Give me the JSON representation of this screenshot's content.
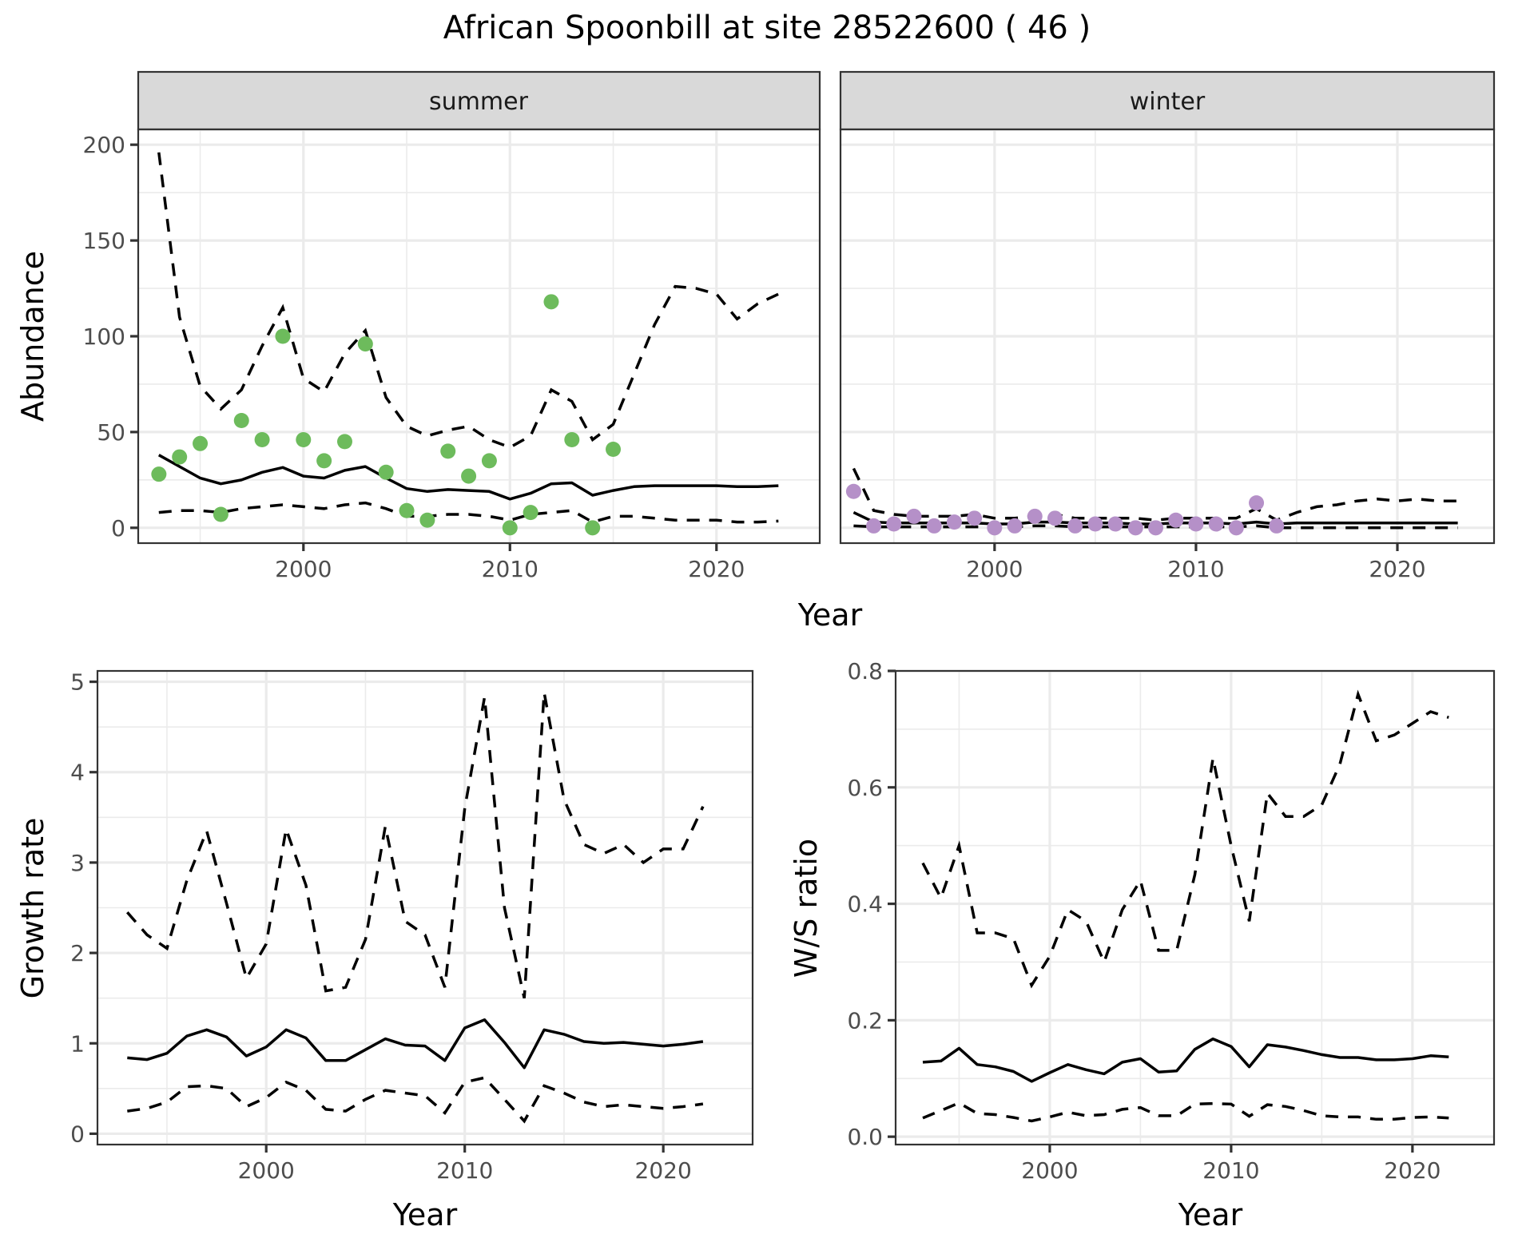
{
  "figure": {
    "title": "African Spoonbill at site 28522600 ( 46 )"
  },
  "colors": {
    "summer_points": "#6dbb5c",
    "winter_points": "#b590c8",
    "lines": "#000000"
  },
  "chart_data": [
    {
      "id": "abundance",
      "type": "scatter",
      "facets": [
        "summer",
        "winter"
      ],
      "title": "",
      "xlabel": "Year",
      "ylabel": "Abundance",
      "xlim": [
        1992,
        2025
      ],
      "ylim": [
        -8,
        208
      ],
      "x_ticks": [
        2000,
        2010,
        2020
      ],
      "y_ticks": [
        0,
        50,
        100,
        150,
        200
      ],
      "grid": true,
      "legend": "none",
      "panels": [
        {
          "label": "summer",
          "points": {
            "x": [
              1993,
              1994,
              1995,
              1996,
              1997,
              1998,
              1999,
              2000,
              2001,
              2002,
              2003,
              2004,
              2005,
              2006,
              2007,
              2008,
              2009,
              2010,
              2011,
              2012,
              2013,
              2014,
              2015
            ],
            "y": [
              28,
              37,
              44,
              7,
              56,
              46,
              100,
              46,
              35,
              45,
              96,
              29,
              9,
              4,
              40,
              27,
              35,
              0,
              8,
              118,
              46,
              0,
              41
            ]
          },
          "series": [
            {
              "name": "mean",
              "style": "solid",
              "x": [
                1993,
                1994,
                1995,
                1996,
                1997,
                1998,
                1999,
                2000,
                2001,
                2002,
                2003,
                2004,
                2005,
                2006,
                2007,
                2008,
                2009,
                2010,
                2011,
                2012,
                2013,
                2014,
                2015,
                2016,
                2017,
                2018,
                2019,
                2020,
                2021,
                2022,
                2023
              ],
              "y": [
                38,
                32,
                26,
                23,
                25,
                29,
                31.5,
                27,
                26,
                30,
                32,
                26,
                20.5,
                19,
                20,
                19.5,
                19,
                15,
                18,
                23,
                23.5,
                17,
                19.5,
                21.5,
                22,
                22,
                22,
                22,
                21.5,
                21.5,
                22
              ]
            },
            {
              "name": "upper",
              "style": "dashed",
              "x": [
                1993,
                1994,
                1995,
                1996,
                1997,
                1998,
                1999,
                2000,
                2001,
                2002,
                2003,
                2004,
                2005,
                2006,
                2007,
                2008,
                2009,
                2010,
                2011,
                2012,
                2013,
                2014,
                2015,
                2016,
                2017,
                2018,
                2019,
                2020,
                2021,
                2022,
                2023
              ],
              "y": [
                196,
                110,
                74,
                62,
                72,
                95,
                115,
                78,
                71,
                91,
                103,
                68,
                53,
                48,
                51,
                53,
                46,
                42,
                48,
                72,
                66,
                46,
                54,
                80,
                106,
                126,
                125,
                122,
                109,
                117,
                122
              ]
            },
            {
              "name": "lower",
              "style": "dashed",
              "x": [
                1993,
                1994,
                1995,
                1996,
                1997,
                1998,
                1999,
                2000,
                2001,
                2002,
                2003,
                2004,
                2005,
                2006,
                2007,
                2008,
                2009,
                2010,
                2011,
                2012,
                2013,
                2014,
                2015,
                2016,
                2017,
                2018,
                2019,
                2020,
                2021,
                2022,
                2023
              ],
              "y": [
                8,
                9,
                9,
                8,
                10,
                11,
                12,
                11,
                10,
                12,
                13,
                10,
                6,
                6,
                7,
                7,
                6,
                4,
                7,
                8,
                9,
                3,
                6,
                6,
                5,
                4,
                4,
                4,
                3,
                3,
                3.5
              ]
            }
          ]
        },
        {
          "label": "winter",
          "points": {
            "x": [
              1993,
              1994,
              1995,
              1996,
              1997,
              1998,
              1999,
              2000,
              2001,
              2002,
              2003,
              2004,
              2005,
              2006,
              2007,
              2008,
              2009,
              2010,
              2011,
              2012,
              2013,
              2014
            ],
            "y": [
              19,
              1,
              2,
              6,
              1,
              3,
              5,
              0,
              1,
              6,
              5,
              1,
              2,
              2,
              0,
              0,
              4,
              2,
              2,
              0,
              13,
              1
            ]
          },
          "series": [
            {
              "name": "mean",
              "style": "solid",
              "x": [
                1993,
                1994,
                1995,
                1996,
                1997,
                1998,
                1999,
                2000,
                2001,
                2002,
                2003,
                2004,
                2005,
                2006,
                2007,
                2008,
                2009,
                2010,
                2011,
                2012,
                2013,
                2014,
                2015,
                2016,
                2017,
                2018,
                2019,
                2020,
                2021,
                2022,
                2023
              ],
              "y": [
                8,
                3,
                2.5,
                2.5,
                2.5,
                2.5,
                2.5,
                2,
                2,
                3,
                3,
                2.5,
                2.5,
                2.5,
                2,
                2,
                2.5,
                2.5,
                2.5,
                2,
                3,
                2,
                2.5,
                2.5,
                2.5,
                2.5,
                2.5,
                2.5,
                2.5,
                2.5,
                2.5
              ]
            },
            {
              "name": "upper",
              "style": "dashed",
              "x": [
                1993,
                1994,
                1995,
                1996,
                1997,
                1998,
                1999,
                2000,
                2001,
                2002,
                2003,
                2004,
                2005,
                2006,
                2007,
                2008,
                2009,
                2010,
                2011,
                2012,
                2013,
                2014,
                2015,
                2016,
                2017,
                2018,
                2019,
                2020,
                2021,
                2022,
                2023
              ],
              "y": [
                31,
                9,
                7,
                6,
                6,
                6,
                7,
                5,
                5,
                6,
                7,
                5,
                5,
                5,
                5,
                4,
                5,
                5,
                5,
                5,
                10,
                4,
                8,
                11,
                12,
                14,
                15,
                14,
                15,
                14,
                14
              ]
            },
            {
              "name": "lower",
              "style": "dashed",
              "x": [
                1993,
                1994,
                1995,
                1996,
                1997,
                1998,
                1999,
                2000,
                2001,
                2002,
                2003,
                2004,
                2005,
                2006,
                2007,
                2008,
                2009,
                2010,
                2011,
                2012,
                2013,
                2014,
                2015,
                2016,
                2017,
                2018,
                2019,
                2020,
                2021,
                2022,
                2023
              ],
              "y": [
                1,
                0.5,
                0.5,
                0.5,
                0.5,
                0.5,
                0.5,
                0.5,
                0.5,
                1,
                1,
                0.5,
                0.5,
                0.5,
                0.5,
                0.5,
                0.5,
                0.5,
                0.5,
                0.5,
                1,
                0,
                0,
                0,
                0,
                0,
                0,
                0,
                0,
                0,
                0
              ]
            }
          ]
        }
      ]
    },
    {
      "id": "growth",
      "type": "line",
      "title": "",
      "xlabel": "Year",
      "ylabel": "Growth rate",
      "xlim": [
        1991.5,
        2024.5
      ],
      "ylim": [
        -0.12,
        5.12
      ],
      "x_ticks": [
        2000,
        2010,
        2020
      ],
      "y_ticks": [
        0,
        1,
        2,
        3,
        4,
        5
      ],
      "grid": true,
      "legend": "none",
      "series": [
        {
          "name": "mean",
          "style": "solid",
          "x": [
            1993,
            1994,
            1995,
            1996,
            1997,
            1998,
            1999,
            2000,
            2001,
            2002,
            2003,
            2004,
            2005,
            2006,
            2007,
            2008,
            2009,
            2010,
            2011,
            2012,
            2013,
            2014,
            2015,
            2016,
            2017,
            2018,
            2019,
            2020,
            2021,
            2022
          ],
          "y": [
            0.84,
            0.82,
            0.89,
            1.08,
            1.15,
            1.07,
            0.86,
            0.96,
            1.15,
            1.06,
            0.81,
            0.81,
            0.93,
            1.05,
            0.98,
            0.97,
            0.81,
            1.17,
            1.26,
            1.01,
            0.73,
            1.15,
            1.1,
            1.02,
            1.0,
            1.01,
            0.99,
            0.97,
            0.99,
            1.02
          ]
        },
        {
          "name": "upper",
          "style": "dashed",
          "x": [
            1993,
            1994,
            1995,
            1996,
            1997,
            1998,
            1999,
            2000,
            2001,
            2002,
            2003,
            2004,
            2005,
            2006,
            2007,
            2008,
            2009,
            2010,
            2011,
            2012,
            2013,
            2014,
            2015,
            2016,
            2017,
            2018,
            2019,
            2020,
            2021,
            2022
          ],
          "y": [
            2.45,
            2.2,
            2.05,
            2.8,
            3.35,
            2.55,
            1.72,
            2.1,
            3.37,
            2.75,
            1.58,
            1.62,
            2.15,
            3.4,
            2.35,
            2.2,
            1.62,
            3.6,
            4.83,
            2.5,
            1.5,
            4.88,
            3.7,
            3.2,
            3.1,
            3.2,
            3.0,
            3.15,
            3.15,
            3.62
          ]
        },
        {
          "name": "lower",
          "style": "dashed",
          "x": [
            1993,
            1994,
            1995,
            1996,
            1997,
            1998,
            1999,
            2000,
            2001,
            2002,
            2003,
            2004,
            2005,
            2006,
            2007,
            2008,
            2009,
            2010,
            2011,
            2012,
            2013,
            2014,
            2015,
            2016,
            2017,
            2018,
            2019,
            2020,
            2021,
            2022
          ],
          "y": [
            0.25,
            0.28,
            0.35,
            0.52,
            0.53,
            0.5,
            0.3,
            0.4,
            0.57,
            0.48,
            0.27,
            0.25,
            0.38,
            0.48,
            0.45,
            0.42,
            0.23,
            0.57,
            0.62,
            0.38,
            0.14,
            0.53,
            0.45,
            0.35,
            0.3,
            0.32,
            0.3,
            0.28,
            0.3,
            0.33
          ]
        }
      ]
    },
    {
      "id": "ws_ratio",
      "type": "line",
      "title": "",
      "xlabel": "Year",
      "ylabel": "W/S ratio",
      "xlim": [
        1991.5,
        2024.5
      ],
      "ylim": [
        -0.0,
        0.8
      ],
      "x_ticks": [
        2000,
        2010,
        2020
      ],
      "y_ticks": [
        0.0,
        0.2,
        0.4,
        0.6,
        0.8
      ],
      "grid": true,
      "legend": "none",
      "series": [
        {
          "name": "mean",
          "style": "solid",
          "x": [
            1993,
            1994,
            1995,
            1996,
            1997,
            1998,
            1999,
            2000,
            2001,
            2002,
            2003,
            2004,
            2005,
            2006,
            2007,
            2008,
            2009,
            2010,
            2011,
            2012,
            2013,
            2014,
            2015,
            2016,
            2017,
            2018,
            2019,
            2020,
            2021,
            2022
          ],
          "y": [
            0.128,
            0.13,
            0.152,
            0.124,
            0.12,
            0.112,
            0.095,
            0.11,
            0.124,
            0.115,
            0.108,
            0.128,
            0.134,
            0.111,
            0.113,
            0.15,
            0.168,
            0.155,
            0.12,
            0.158,
            0.154,
            0.148,
            0.141,
            0.136,
            0.136,
            0.132,
            0.132,
            0.134,
            0.139,
            0.137
          ]
        },
        {
          "name": "upper",
          "style": "dashed",
          "x": [
            1993,
            1994,
            1995,
            1996,
            1997,
            1998,
            1999,
            2000,
            2001,
            2002,
            2003,
            2004,
            2005,
            2006,
            2007,
            2008,
            2009,
            2010,
            2011,
            2012,
            2013,
            2014,
            2015,
            2016,
            2017,
            2018,
            2019,
            2020,
            2021,
            2022
          ],
          "y": [
            0.47,
            0.41,
            0.5,
            0.35,
            0.35,
            0.34,
            0.26,
            0.31,
            0.39,
            0.37,
            0.3,
            0.39,
            0.44,
            0.32,
            0.32,
            0.45,
            0.65,
            0.5,
            0.37,
            0.59,
            0.55,
            0.55,
            0.57,
            0.64,
            0.76,
            0.68,
            0.69,
            0.71,
            0.73,
            0.72
          ]
        },
        {
          "name": "lower",
          "style": "dashed",
          "x": [
            1993,
            1994,
            1995,
            1996,
            1997,
            1998,
            1999,
            2000,
            2001,
            2002,
            2003,
            2004,
            2005,
            2006,
            2007,
            2008,
            2009,
            2010,
            2011,
            2012,
            2013,
            2014,
            2015,
            2016,
            2017,
            2018,
            2019,
            2020,
            2021,
            2022
          ],
          "y": [
            0.032,
            0.045,
            0.058,
            0.04,
            0.038,
            0.033,
            0.027,
            0.034,
            0.042,
            0.036,
            0.038,
            0.047,
            0.05,
            0.036,
            0.036,
            0.056,
            0.057,
            0.056,
            0.035,
            0.055,
            0.052,
            0.045,
            0.036,
            0.034,
            0.034,
            0.03,
            0.03,
            0.033,
            0.034,
            0.032
          ]
        }
      ]
    }
  ]
}
